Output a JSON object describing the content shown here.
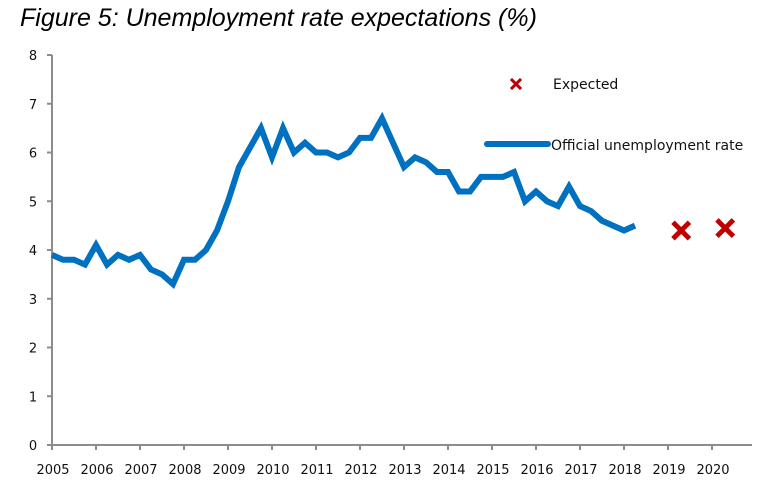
{
  "chart_data": {
    "type": "line",
    "title": "Figure 5: Unemployment rate expectations (%)",
    "xlabel": "",
    "ylabel": "",
    "xlim": [
      2005,
      2020.9
    ],
    "ylim": [
      0,
      8
    ],
    "y_ticks": [
      0,
      1,
      2,
      3,
      4,
      5,
      6,
      7,
      8
    ],
    "x_ticks": [
      2005,
      2006,
      2007,
      2008,
      2009,
      2010,
      2011,
      2012,
      2013,
      2014,
      2015,
      2016,
      2017,
      2018,
      2019,
      2020
    ],
    "x_tick_labels": [
      "2005",
      "2006",
      "2007",
      "2008",
      "2009",
      "2010",
      "2011",
      "2012",
      "2013",
      "2014",
      "2015",
      "2016",
      "2017",
      "2018",
      "2019",
      "2020"
    ],
    "y_tick_labels": [
      "0",
      "1",
      "2",
      "3",
      "4",
      "5",
      "6",
      "7",
      "8"
    ],
    "grid": false,
    "legend_position": "top-right",
    "series": [
      {
        "name": "Official unemployment rate",
        "kind": "line",
        "color": "#0070C0",
        "x_start": 2005.0,
        "x_step": 0.25,
        "values": [
          3.9,
          3.8,
          3.8,
          3.7,
          4.1,
          3.7,
          3.9,
          3.8,
          3.9,
          3.6,
          3.5,
          3.3,
          3.8,
          3.8,
          4.0,
          4.4,
          5.0,
          5.7,
          6.1,
          6.5,
          5.9,
          6.5,
          6.0,
          6.2,
          6.0,
          6.0,
          5.9,
          6.0,
          6.3,
          6.3,
          6.7,
          6.2,
          5.7,
          5.9,
          5.8,
          5.6,
          5.6,
          5.2,
          5.2,
          5.5,
          5.5,
          5.5,
          5.6,
          5.0,
          5.2,
          5.0,
          4.9,
          5.3,
          4.9,
          4.8,
          4.6,
          4.5,
          4.4,
          4.5
        ]
      },
      {
        "name": "Expected",
        "kind": "marker",
        "marker": "x",
        "color": "#C00000",
        "points": [
          {
            "x": 2019.3,
            "y": 4.4
          },
          {
            "x": 2020.3,
            "y": 4.45
          }
        ]
      }
    ]
  }
}
